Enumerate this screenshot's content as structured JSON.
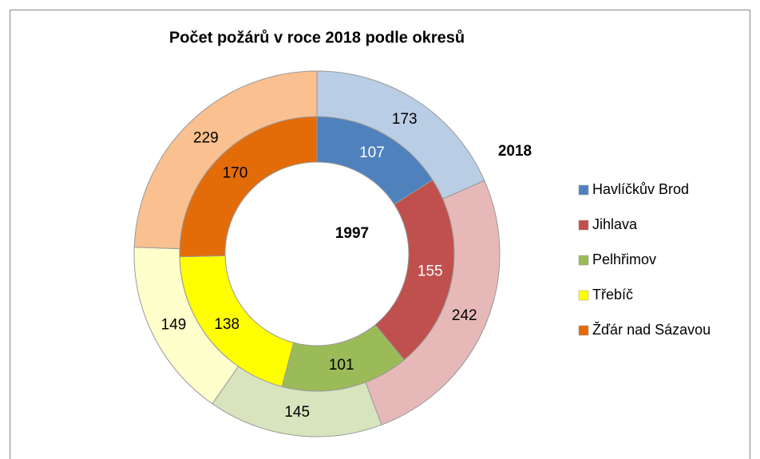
{
  "chart_data": {
    "type": "doughnut",
    "title": "Počet požárů v roce 2018 podle okresů",
    "categories": [
      "Havlíčkův Brod",
      "Jihlava",
      "Pelhřimov",
      "Třebíč",
      "Žďár nad Sázavou"
    ],
    "series": [
      {
        "name": "1997",
        "values": [
          107,
          155,
          101,
          138,
          170
        ],
        "colors": [
          "#4f81bd",
          "#c0504d",
          "#9bbb59",
          "#ffff00",
          "#e36c09"
        ]
      },
      {
        "name": "2018",
        "values": [
          173,
          242,
          145,
          149,
          229
        ],
        "colors": [
          "#b9cde5",
          "#e6b9b8",
          "#d7e4bd",
          "#ffffcc",
          "#fac090"
        ]
      }
    ],
    "legend": "right"
  }
}
